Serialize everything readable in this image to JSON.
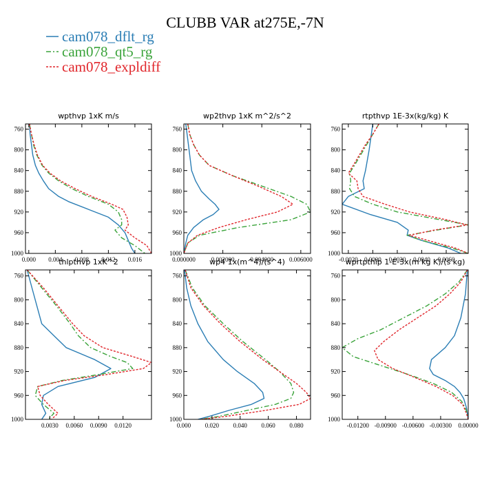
{
  "colors": {
    "dflt": "#2a7db4",
    "qt5": "#3aa33a",
    "expldiff": "#e0262b",
    "axis": "#000000"
  },
  "chart_data": {
    "type": "line",
    "title": "CLUBB VAR at275E,-7N",
    "legend": {
      "placement": "top-left",
      "entries": [
        {
          "name": "cam078_dflt_rg",
          "style": "solid",
          "color": "#2a7db4"
        },
        {
          "name": "cam078_qt5_rg",
          "style": "dashdot",
          "color": "#3aa33a"
        },
        {
          "name": "cam078_expldiff",
          "style": "dotted",
          "color": "#e0262b"
        }
      ]
    },
    "panels": [
      {
        "title": "wpthvp   1xK m/s",
        "xlim": [
          -0.0005,
          0.0185
        ],
        "ylim": [
          1000,
          750
        ],
        "xticks": [
          0.0,
          0.004,
          0.008,
          0.012,
          0.016
        ],
        "xtick_labels": [
          "0.000",
          "0.004",
          "0.008",
          "0.012",
          "0.016"
        ],
        "yticks": [
          760,
          800,
          840,
          880,
          920,
          960,
          1000
        ],
        "ytick_labels": [
          "760",
          "800",
          "840",
          "880",
          "920",
          "960",
          "1000"
        ],
        "series": [
          {
            "name": "cam078_dflt_rg",
            "y": [
              750,
              770,
              790,
              810,
              830,
              845,
              860,
              875,
              890,
              900,
              915,
              930,
              945,
              960,
              975,
              990,
              1000
            ],
            "x": [
              0.0001,
              0.0002,
              0.0004,
              0.0006,
              0.001,
              0.0015,
              0.0022,
              0.003,
              0.0045,
              0.006,
              0.009,
              0.012,
              0.0135,
              0.0145,
              0.015,
              0.0155,
              0.016
            ]
          },
          {
            "name": "cam078_qt5_rg",
            "y": [
              750,
              770,
              790,
              810,
              830,
              845,
              860,
              875,
              890,
              905,
              920,
              935,
              945,
              955,
              970,
              985,
              1000
            ],
            "x": [
              0.0001,
              0.0004,
              0.0007,
              0.0012,
              0.002,
              0.003,
              0.0045,
              0.0065,
              0.009,
              0.012,
              0.0135,
              0.014,
              0.014,
              0.013,
              0.014,
              0.016,
              0.0175
            ]
          },
          {
            "name": "cam078_expldiff",
            "y": [
              750,
              770,
              790,
              810,
              830,
              845,
              860,
              875,
              890,
              905,
              915,
              930,
              945,
              955,
              970,
              985,
              1000
            ],
            "x": [
              0.0001,
              0.0004,
              0.0008,
              0.0013,
              0.0021,
              0.0032,
              0.0048,
              0.007,
              0.0095,
              0.0125,
              0.0142,
              0.0148,
              0.015,
              0.0145,
              0.016,
              0.0178,
              0.0185
            ]
          }
        ]
      },
      {
        "title": "wp2thvp   1xK m^2/s^2",
        "xlim": [
          0,
          0.0065
        ],
        "ylim": [
          1000,
          750
        ],
        "xticks": [
          0.0,
          0.002,
          0.004,
          0.006
        ],
        "xtick_labels": [
          "0.000000",
          "0.002000",
          "0.004000",
          "0.006000"
        ],
        "yticks": [
          760,
          800,
          840,
          880,
          920,
          960,
          1000
        ],
        "ytick_labels": [
          "760",
          "800",
          "840",
          "880",
          "920",
          "960",
          "1000"
        ],
        "series": [
          {
            "name": "cam078_dflt_rg",
            "y": [
              750,
              780,
              810,
              840,
              860,
              880,
              895,
              905,
              915,
              925,
              935,
              950,
              965,
              980,
              1000
            ],
            "x": [
              0.0001,
              0.0002,
              0.0003,
              0.0004,
              0.0006,
              0.0009,
              0.0013,
              0.0016,
              0.0018,
              0.0015,
              0.001,
              0.0005,
              0.0002,
              0.0001,
              0.0
            ]
          },
          {
            "name": "cam078_qt5_rg",
            "y": [
              750,
              770,
              790,
              810,
              830,
              850,
              870,
              890,
              905,
              920,
              935,
              950,
              965,
              980,
              1000
            ],
            "x": [
              0.0002,
              0.0003,
              0.0005,
              0.0008,
              0.0013,
              0.0025,
              0.004,
              0.0055,
              0.0063,
              0.0065,
              0.0055,
              0.0028,
              0.0008,
              0.0002,
              0.0
            ]
          },
          {
            "name": "cam078_expldiff",
            "y": [
              750,
              770,
              790,
              810,
              830,
              850,
              870,
              890,
              905,
              920,
              935,
              950,
              965,
              980,
              1000
            ],
            "x": [
              0.0002,
              0.0003,
              0.0005,
              0.0008,
              0.0013,
              0.0025,
              0.0038,
              0.005,
              0.0056,
              0.0048,
              0.0032,
              0.0018,
              0.0007,
              0.0002,
              0.0
            ]
          }
        ]
      },
      {
        "title": "rtpthvp   1E-3x(kg/kg) K",
        "xlim": [
          -0.0025,
          0.0078
        ],
        "ylim": [
          1000,
          750
        ],
        "xticks": [
          -0.002,
          0.0,
          0.002,
          0.004,
          0.006
        ],
        "xtick_labels": [
          "-0.0020",
          "0.0000",
          "0.0020",
          "0.0040",
          "0.0060"
        ],
        "yticks": [
          760,
          800,
          840,
          880,
          920,
          960,
          1000
        ],
        "ytick_labels": [
          "760",
          "800",
          "840",
          "880",
          "920",
          "960",
          "1000"
        ],
        "series": [
          {
            "name": "cam078_dflt_rg",
            "y": [
              750,
              800,
              840,
              860,
              875,
              890,
              905,
              925,
              940,
              955,
              965,
              975,
              990,
              1000
            ],
            "x": [
              0.0,
              -0.0003,
              -0.0006,
              -0.0008,
              -0.0007,
              -0.002,
              -0.0025,
              -0.0002,
              0.002,
              0.0029,
              0.0028,
              0.004,
              0.0062,
              0.0072
            ]
          },
          {
            "name": "cam078_qt5_rg",
            "y": [
              750,
              770,
              790,
              810,
              830,
              845,
              860,
              875,
              890,
              905,
              920,
              935,
              945,
              955,
              965,
              975,
              990,
              1000
            ],
            "x": [
              0.0005,
              0.0,
              -0.0005,
              -0.001,
              -0.0015,
              -0.0019,
              -0.0018,
              -0.0019,
              -0.0015,
              0.0,
              0.002,
              0.0055,
              0.0078,
              0.0052,
              0.0028,
              0.004,
              0.0065,
              0.0078
            ]
          },
          {
            "name": "cam078_expldiff",
            "y": [
              750,
              770,
              790,
              810,
              830,
              845,
              860,
              875,
              890,
              905,
              920,
              935,
              945,
              955,
              965,
              975,
              990,
              1000
            ],
            "x": [
              0.0005,
              0.0,
              -0.0006,
              -0.0011,
              -0.0016,
              -0.002,
              -0.0013,
              -0.0012,
              -0.0008,
              0.001,
              0.003,
              0.006,
              0.0077,
              0.005,
              0.003,
              0.0045,
              0.0068,
              0.0078
            ]
          }
        ]
      },
      {
        "title": "thlpthvp   1xK^2",
        "xlim": [
          0.0,
          0.0155
        ],
        "ylim": [
          1000,
          750
        ],
        "xticks": [
          0.003,
          0.006,
          0.009,
          0.012
        ],
        "xtick_labels": [
          "0.0030",
          "0.0060",
          "0.0090",
          "0.0120"
        ],
        "yticks": [
          760,
          800,
          840,
          880,
          920,
          960,
          1000
        ],
        "ytick_labels": [
          "760",
          "800",
          "840",
          "880",
          "920",
          "960",
          "1000"
        ],
        "series": [
          {
            "name": "cam078_dflt_rg",
            "y": [
              750,
              780,
              810,
              840,
              860,
              880,
              900,
              915,
              930,
              945,
              960,
              975,
              990,
              1000
            ],
            "x": [
              0.0002,
              0.0008,
              0.0014,
              0.002,
              0.0035,
              0.005,
              0.0085,
              0.0105,
              0.0085,
              0.004,
              0.0022,
              0.002,
              0.0025,
              0.002
            ]
          },
          {
            "name": "cam078_qt5_rg",
            "y": [
              750,
              780,
              810,
              840,
              860,
              880,
              895,
              905,
              915,
              925,
              935,
              945,
              960,
              975,
              990,
              1000
            ],
            "x": [
              0.0002,
              0.002,
              0.0038,
              0.0055,
              0.0065,
              0.008,
              0.0105,
              0.0125,
              0.0132,
              0.009,
              0.0045,
              0.0015,
              0.0012,
              0.0022,
              0.0035,
              0.0028
            ]
          },
          {
            "name": "cam078_expldiff",
            "y": [
              750,
              780,
              810,
              840,
              860,
              880,
              895,
              905,
              915,
              925,
              935,
              945,
              960,
              975,
              990,
              1000
            ],
            "x": [
              0.0002,
              0.0022,
              0.004,
              0.0058,
              0.0072,
              0.0095,
              0.0132,
              0.0155,
              0.0145,
              0.01,
              0.0048,
              0.0015,
              0.0018,
              0.0028,
              0.004,
              0.0032
            ]
          }
        ]
      },
      {
        "title": "wp4   1x(m^4)/(s^4)",
        "xlim": [
          0.0,
          0.09
        ],
        "ylim": [
          1000,
          750
        ],
        "xticks": [
          0.0,
          0.02,
          0.04,
          0.06,
          0.08
        ],
        "xtick_labels": [
          "0.000",
          "0.020",
          "0.040",
          "0.060",
          "0.080"
        ],
        "yticks": [
          760,
          800,
          840,
          880,
          920,
          960,
          1000
        ],
        "ytick_labels": [
          "760",
          "800",
          "840",
          "880",
          "920",
          "960",
          "1000"
        ],
        "series": [
          {
            "name": "cam078_dflt_rg",
            "y": [
              750,
              780,
              810,
              840,
              870,
              900,
              920,
              940,
              955,
              965,
              975,
              985,
              995,
              1000
            ],
            "x": [
              0.0005,
              0.002,
              0.005,
              0.01,
              0.017,
              0.028,
              0.038,
              0.05,
              0.056,
              0.057,
              0.048,
              0.032,
              0.018,
              0.01
            ]
          },
          {
            "name": "cam078_qt5_rg",
            "y": [
              750,
              780,
              810,
              840,
              870,
              900,
              920,
              940,
              955,
              965,
              975,
              985,
              995,
              1000
            ],
            "x": [
              0.001,
              0.006,
              0.015,
              0.028,
              0.042,
              0.058,
              0.068,
              0.076,
              0.078,
              0.076,
              0.065,
              0.045,
              0.025,
              0.012
            ]
          },
          {
            "name": "cam078_expldiff",
            "y": [
              750,
              780,
              810,
              840,
              870,
              900,
              920,
              940,
              955,
              965,
              975,
              985,
              995,
              1000
            ],
            "x": [
              0.001,
              0.005,
              0.014,
              0.026,
              0.04,
              0.056,
              0.068,
              0.08,
              0.087,
              0.09,
              0.082,
              0.058,
              0.03,
              0.012
            ]
          }
        ]
      },
      {
        "title": "wprtpthlp   1-E-3x(m kg K)/(s kg)",
        "xlim": [
          -0.0137,
          0.0
        ],
        "ylim": [
          1000,
          750
        ],
        "xticks": [
          -0.012,
          -0.009,
          -0.006,
          -0.003,
          0.0
        ],
        "xtick_labels": [
          "-0.01200",
          "-0.00900",
          "-0.00600",
          "-0.00300",
          "0.00000"
        ],
        "yticks": [
          760,
          800,
          840,
          880,
          920,
          960,
          1000
        ],
        "ytick_labels": [
          "760",
          "800",
          "840",
          "880",
          "920",
          "960",
          "1000"
        ],
        "series": [
          {
            "name": "cam078_dflt_rg",
            "y": [
              750,
              790,
              830,
              860,
              880,
              900,
              915,
              925,
              935,
              945,
              955,
              965,
              980,
              990,
              1000
            ],
            "x": [
              -0.0001,
              -0.0003,
              -0.0008,
              -0.0015,
              -0.0025,
              -0.004,
              -0.0042,
              -0.0038,
              -0.0025,
              -0.0015,
              -0.0009,
              -0.0005,
              -0.0002,
              -0.0001,
              0.0
            ]
          },
          {
            "name": "cam078_qt5_rg",
            "y": [
              750,
              770,
              790,
              810,
              830,
              850,
              865,
              880,
              895,
              910,
              925,
              940,
              955,
              970,
              985,
              1000
            ],
            "x": [
              -0.0001,
              -0.001,
              -0.0025,
              -0.0045,
              -0.007,
              -0.0095,
              -0.012,
              -0.0137,
              -0.0125,
              -0.0095,
              -0.0065,
              -0.0038,
              -0.0018,
              -0.0007,
              -0.0002,
              0.0
            ]
          },
          {
            "name": "cam078_expldiff",
            "y": [
              750,
              770,
              790,
              810,
              830,
              850,
              870,
              885,
              900,
              915,
              930,
              945,
              960,
              975,
              990,
              1000
            ],
            "x": [
              -0.0001,
              -0.0008,
              -0.002,
              -0.0035,
              -0.0055,
              -0.0075,
              -0.0092,
              -0.0102,
              -0.0098,
              -0.0082,
              -0.0058,
              -0.0035,
              -0.0017,
              -0.0006,
              -0.0002,
              0.0
            ]
          }
        ]
      }
    ]
  }
}
